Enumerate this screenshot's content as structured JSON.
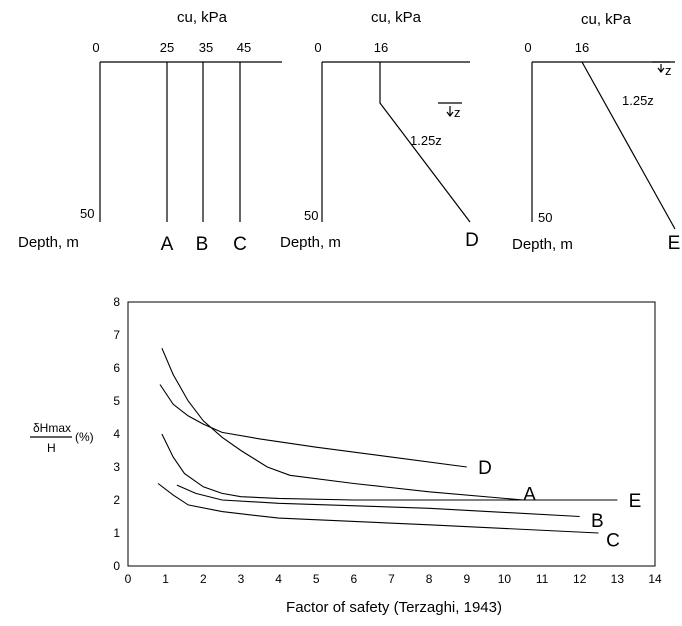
{
  "profiles": {
    "panel1": {
      "title": "cu, kPa",
      "ticks": [
        "0",
        "25",
        "35",
        "45"
      ],
      "depth_value": "50",
      "depth_label": "Depth, m",
      "profile_letters": [
        "A",
        "B",
        "C"
      ]
    },
    "panel2": {
      "title": "cu, kPa",
      "ticks": [
        "0",
        "16"
      ],
      "depth_value": "50",
      "depth_label": "Depth, m",
      "gradient_label": "1.25z",
      "z_label": "z",
      "profile_letter": "D"
    },
    "panel3": {
      "title": "cu, kPa",
      "ticks": [
        "0",
        "16"
      ],
      "depth_value": "50",
      "depth_label": "Depth, m",
      "gradient_label": "1.25z",
      "z_label": "z",
      "profile_letter": "E"
    }
  },
  "chart_data": {
    "type": "line",
    "xlabel": "Factor of safety (Terzaghi, 1943)",
    "ylabel_numerator": "δHmax",
    "ylabel_denominator": "H",
    "ylabel_suffix": "(%)",
    "xlim": [
      0,
      14
    ],
    "ylim": [
      0,
      8
    ],
    "x_ticks": [
      0,
      1,
      2,
      3,
      4,
      5,
      6,
      7,
      8,
      9,
      10,
      11,
      12,
      13,
      14
    ],
    "y_ticks": [
      0,
      1,
      2,
      3,
      4,
      5,
      6,
      7,
      8
    ],
    "grid": false,
    "series": [
      {
        "name": "D",
        "x": [
          0.85,
          1.2,
          1.6,
          2.0,
          2.5,
          3.5,
          5.0,
          7.0,
          9.0
        ],
        "y": [
          5.5,
          4.9,
          4.55,
          4.3,
          4.05,
          3.85,
          3.6,
          3.3,
          3.0
        ]
      },
      {
        "name": "A",
        "x": [
          0.9,
          1.2,
          1.6,
          2.0,
          2.5,
          3.0,
          3.7,
          4.3,
          6.0,
          8.0,
          10.5,
          12.0
        ],
        "y": [
          6.6,
          5.8,
          5.0,
          4.4,
          3.9,
          3.5,
          3.0,
          2.75,
          2.5,
          2.25,
          2.0,
          2.0
        ]
      },
      {
        "name": "E",
        "x": [
          0.9,
          1.2,
          1.5,
          2.0,
          2.5,
          3.0,
          4.0,
          6.0,
          9.0,
          13.0
        ],
        "y": [
          4.0,
          3.3,
          2.8,
          2.4,
          2.2,
          2.1,
          2.05,
          2.0,
          2.0,
          2.0
        ]
      },
      {
        "name": "B",
        "x": [
          1.3,
          1.8,
          2.5,
          4.0,
          8.0,
          12.0
        ],
        "y": [
          2.45,
          2.2,
          2.0,
          1.9,
          1.75,
          1.5
        ]
      },
      {
        "name": "C",
        "x": [
          0.8,
          1.2,
          1.6,
          2.5,
          4.0,
          8.0,
          12.5
        ],
        "y": [
          2.5,
          2.15,
          1.85,
          1.65,
          1.45,
          1.25,
          1.0
        ]
      }
    ],
    "series_labels": [
      {
        "text": "D",
        "x": 9.3,
        "y": 3.0
      },
      {
        "text": "A",
        "x": 10.5,
        "y": 2.2
      },
      {
        "text": "E",
        "x": 13.3,
        "y": 2.0
      },
      {
        "text": "B",
        "x": 12.3,
        "y": 1.4
      },
      {
        "text": "C",
        "x": 12.7,
        "y": 0.8
      }
    ]
  }
}
